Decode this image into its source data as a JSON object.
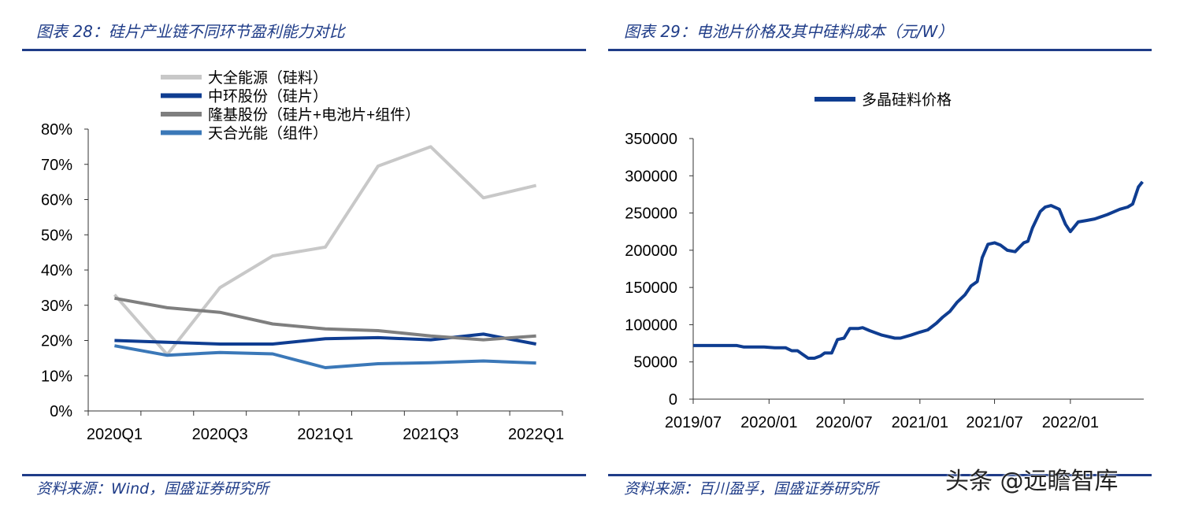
{
  "left_panel": {
    "title": "图表 28：硅片产业链不同环节盈利能力对比",
    "source": "资料来源：Wind，国盛证券研究所"
  },
  "right_panel": {
    "title": "图表 29：电池片价格及其中硅料成本（元/W）",
    "source": "资料来源：百川盈孚，国盛证券研究所"
  },
  "watermark": "头条 @远瞻智库",
  "chart_data": [
    {
      "type": "line",
      "categories": [
        "2020Q1",
        "2020Q2",
        "2020Q3",
        "2020Q4",
        "2021Q1",
        "2021Q2",
        "2021Q3",
        "2021Q4",
        "2022Q1"
      ],
      "x_tick_labels": [
        "2020Q1",
        "2020Q3",
        "2021Q1",
        "2021Q3",
        "2022Q1"
      ],
      "y_tick_labels": [
        "0%",
        "10%",
        "20%",
        "30%",
        "40%",
        "50%",
        "60%",
        "70%",
        "80%"
      ],
      "ylim": [
        0,
        80
      ],
      "legend_position": "top-left",
      "grid": false,
      "series": [
        {
          "name": "大全能源（硅料）",
          "color": "#c8c8c8",
          "values": [
            33,
            16,
            35,
            44,
            46.5,
            69.5,
            75,
            60.5,
            64
          ]
        },
        {
          "name": "中环股份（硅片）",
          "color": "#0f3d91",
          "values": [
            20,
            19.5,
            19,
            19,
            20.5,
            20.8,
            20.2,
            21.8,
            19
          ]
        },
        {
          "name": "隆基股份（硅片+电池片+组件）",
          "color": "#7f7f7f",
          "values": [
            32,
            29.3,
            28,
            24.7,
            23.3,
            22.8,
            21.3,
            20.2,
            21.3
          ]
        },
        {
          "name": "天合光能（组件）",
          "color": "#3b78b8",
          "values": [
            18.5,
            15.8,
            16.6,
            16.2,
            12.3,
            13.4,
            13.7,
            14.2,
            13.6
          ]
        }
      ]
    },
    {
      "type": "line",
      "x_tick_labels": [
        "2019/07",
        "2020/01",
        "2020/07",
        "2021/01",
        "2021/07",
        "2022/01"
      ],
      "y_tick_labels": [
        "0",
        "50000",
        "100000",
        "150000",
        "200000",
        "250000",
        "300000",
        "350000"
      ],
      "ylim": [
        0,
        350000
      ],
      "legend_position": "top-center",
      "grid": false,
      "series": [
        {
          "name": "多晶硅料价格",
          "color": "#0f3d91",
          "x": [
            "2019-07-01",
            "2019-10-15",
            "2019-11-01",
            "2019-12-20",
            "2020-01-15",
            "2020-02-10",
            "2020-02-25",
            "2020-03-10",
            "2020-04-05",
            "2020-04-20",
            "2020-05-05",
            "2020-05-15",
            "2020-06-01",
            "2020-06-15",
            "2020-07-01",
            "2020-07-15",
            "2020-08-05",
            "2020-08-15",
            "2020-09-01",
            "2020-10-01",
            "2020-11-01",
            "2020-11-15",
            "2020-12-10",
            "2021-01-01",
            "2021-01-20",
            "2021-02-10",
            "2021-02-25",
            "2021-03-15",
            "2021-04-01",
            "2021-04-20",
            "2021-05-05",
            "2021-05-20",
            "2021-06-01",
            "2021-06-15",
            "2021-07-01",
            "2021-07-15",
            "2021-08-01",
            "2021-08-20",
            "2021-09-10",
            "2021-09-20",
            "2021-10-01",
            "2021-10-20",
            "2021-11-01",
            "2021-11-15",
            "2021-12-05",
            "2021-12-20",
            "2022-01-01",
            "2022-01-20",
            "2022-02-10",
            "2022-03-01",
            "2022-04-01",
            "2022-05-01",
            "2022-05-20",
            "2022-06-01",
            "2022-06-15",
            "2022-06-25"
          ],
          "values": [
            72000,
            72000,
            70000,
            70000,
            69000,
            69000,
            65000,
            65000,
            55000,
            55000,
            58000,
            62000,
            62000,
            80000,
            82000,
            95000,
            95000,
            96000,
            92000,
            86000,
            82000,
            82000,
            86000,
            90000,
            93000,
            102000,
            110000,
            118000,
            130000,
            140000,
            152000,
            158000,
            190000,
            208000,
            210000,
            207000,
            200000,
            198000,
            210000,
            212000,
            230000,
            252000,
            258000,
            260000,
            255000,
            235000,
            225000,
            238000,
            240000,
            242000,
            248000,
            255000,
            258000,
            262000,
            285000,
            292000
          ]
        }
      ]
    }
  ]
}
